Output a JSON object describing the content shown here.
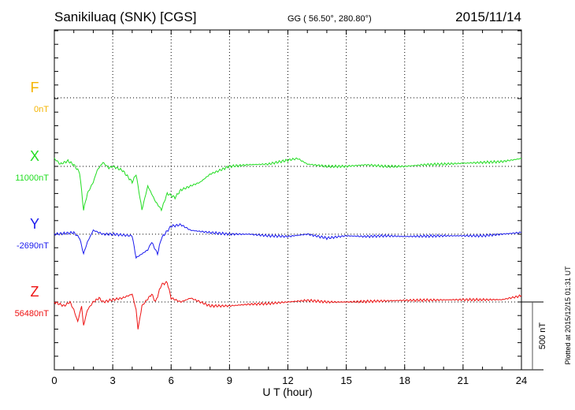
{
  "chart_data": {
    "type": "line",
    "title": "Sanikiluaq (SNK)  [CGS]",
    "subtitle": "GG ( 56.50°, 280.80°)",
    "date": "2015/11/14",
    "xlabel": "U T (hour)",
    "xlim": [
      0,
      24
    ],
    "xticks": [
      "0",
      "3",
      "6",
      "9",
      "12",
      "15",
      "18",
      "21",
      "24"
    ],
    "scale_label": "500 nT",
    "scale_nT": 500,
    "plotted_note": "Plotted at 2015/12/15 01:31  UT",
    "grid": true,
    "series": [
      {
        "name": "F",
        "baseline_label": "0nT",
        "color": "#f5b400",
        "points": []
      },
      {
        "name": "X",
        "baseline_label": "11000nT",
        "color": "#22dd22",
        "points": [
          [
            0,
            58
          ],
          [
            0.3,
            17
          ],
          [
            0.7,
            40
          ],
          [
            1.0,
            12
          ],
          [
            1.3,
            -46
          ],
          [
            1.5,
            -320
          ],
          [
            1.7,
            -200
          ],
          [
            2.0,
            -116
          ],
          [
            2.2,
            -29
          ],
          [
            2.5,
            29
          ],
          [
            2.8,
            -12
          ],
          [
            3.0,
            0
          ],
          [
            3.5,
            -29
          ],
          [
            4.0,
            -116
          ],
          [
            4.2,
            -58
          ],
          [
            4.5,
            -320
          ],
          [
            4.8,
            -145
          ],
          [
            5.2,
            -260
          ],
          [
            5.5,
            -320
          ],
          [
            5.8,
            -200
          ],
          [
            6.2,
            -230
          ],
          [
            6.5,
            -174
          ],
          [
            7,
            -145
          ],
          [
            7.5,
            -116
          ],
          [
            8,
            -58
          ],
          [
            8.5,
            -29
          ],
          [
            9,
            0
          ],
          [
            10,
            12
          ],
          [
            11,
            17
          ],
          [
            12,
            46
          ],
          [
            12.5,
            58
          ],
          [
            13,
            17
          ],
          [
            14,
            0
          ],
          [
            15,
            0
          ],
          [
            16,
            12
          ],
          [
            17,
            0
          ],
          [
            18,
            0
          ],
          [
            19,
            12
          ],
          [
            20,
            17
          ],
          [
            21,
            23
          ],
          [
            22,
            29
          ],
          [
            23,
            35
          ],
          [
            24,
            58
          ]
        ]
      },
      {
        "name": "Y",
        "baseline_label": "-2690nT",
        "color": "#1a1aee",
        "points": [
          [
            0,
            0
          ],
          [
            1,
            12
          ],
          [
            1.3,
            -29
          ],
          [
            1.5,
            -145
          ],
          [
            1.7,
            -58
          ],
          [
            2,
            29
          ],
          [
            2.5,
            0
          ],
          [
            3,
            0
          ],
          [
            4,
            -12
          ],
          [
            4.2,
            -174
          ],
          [
            4.5,
            -145
          ],
          [
            4.8,
            -116
          ],
          [
            5,
            -58
          ],
          [
            5.3,
            -145
          ],
          [
            5.5,
            -29
          ],
          [
            6,
            58
          ],
          [
            6.5,
            70
          ],
          [
            7,
            29
          ],
          [
            8,
            12
          ],
          [
            9,
            0
          ],
          [
            10,
            0
          ],
          [
            11,
            -12
          ],
          [
            12,
            -17
          ],
          [
            13,
            0
          ],
          [
            14,
            -29
          ],
          [
            15,
            -12
          ],
          [
            16,
            -17
          ],
          [
            17,
            -12
          ],
          [
            18,
            -17
          ],
          [
            20,
            -12
          ],
          [
            22,
            -12
          ],
          [
            24,
            12
          ]
        ]
      },
      {
        "name": "Z",
        "baseline_label": "56480nT",
        "color": "#ee1111",
        "points": [
          [
            0,
            0
          ],
          [
            0.5,
            -29
          ],
          [
            0.8,
            0
          ],
          [
            1,
            -58
          ],
          [
            1.2,
            -145
          ],
          [
            1.4,
            -29
          ],
          [
            1.5,
            -174
          ],
          [
            1.7,
            -58
          ],
          [
            2,
            0
          ],
          [
            2.3,
            29
          ],
          [
            2.5,
            0
          ],
          [
            3,
            17
          ],
          [
            3.5,
            29
          ],
          [
            4,
            58
          ],
          [
            4.2,
            -58
          ],
          [
            4.3,
            -200
          ],
          [
            4.5,
            -29
          ],
          [
            5,
            58
          ],
          [
            5.2,
            0
          ],
          [
            5.5,
            128
          ],
          [
            5.8,
            145
          ],
          [
            6,
            29
          ],
          [
            6.5,
            0
          ],
          [
            7,
            29
          ],
          [
            7.5,
            0
          ],
          [
            8,
            -29
          ],
          [
            9,
            -29
          ],
          [
            10,
            -17
          ],
          [
            11,
            -12
          ],
          [
            12,
            0
          ],
          [
            13,
            12
          ],
          [
            14,
            0
          ],
          [
            15,
            0
          ],
          [
            18,
            12
          ],
          [
            21,
            17
          ],
          [
            23,
            17
          ],
          [
            24,
            46
          ]
        ]
      }
    ]
  }
}
